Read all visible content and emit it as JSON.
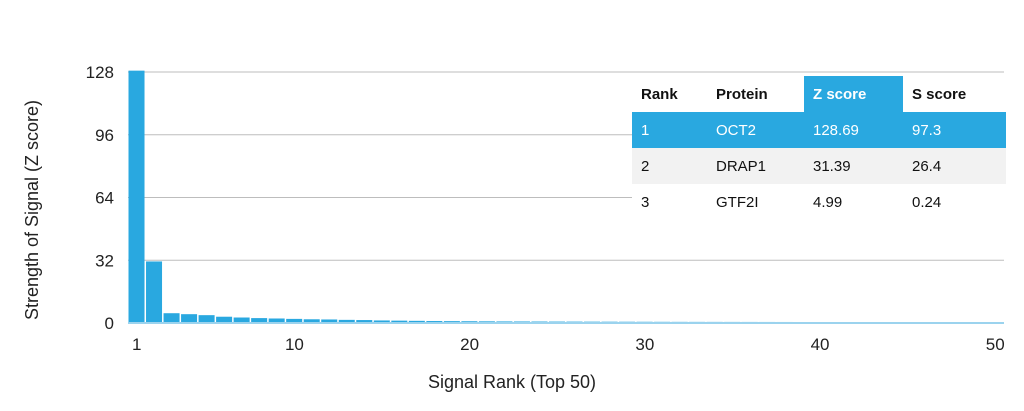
{
  "chart_data": {
    "type": "bar",
    "xlabel": "Signal Rank (Top 50)",
    "ylabel": "Strength of Signal (Z score)",
    "ylim": [
      0,
      128
    ],
    "yticks": [
      "0",
      "32",
      "64",
      "96",
      "128"
    ],
    "xticks": [
      "1",
      "10",
      "20",
      "30",
      "40",
      "50"
    ],
    "grid": true,
    "categories": [
      1,
      2,
      3,
      4,
      5,
      6,
      7,
      8,
      9,
      10,
      11,
      12,
      13,
      14,
      15,
      16,
      17,
      18,
      19,
      20,
      21,
      22,
      23,
      24,
      25,
      26,
      27,
      28,
      29,
      30,
      31,
      32,
      33,
      34,
      35,
      36,
      37,
      38,
      39,
      40,
      41,
      42,
      43,
      44,
      45,
      46,
      47,
      48,
      49,
      50
    ],
    "values": [
      128.69,
      31.39,
      4.99,
      4.5,
      4.0,
      3.2,
      2.8,
      2.5,
      2.3,
      2.1,
      1.9,
      1.8,
      1.6,
      1.5,
      1.3,
      1.2,
      1.1,
      1.0,
      0.95,
      0.9,
      0.85,
      0.8,
      0.78,
      0.75,
      0.72,
      0.7,
      0.68,
      0.66,
      0.64,
      0.62,
      0.6,
      0.58,
      0.57,
      0.56,
      0.55,
      0.54,
      0.53,
      0.52,
      0.51,
      0.5,
      0.49,
      0.48,
      0.47,
      0.46,
      0.45,
      0.44,
      0.43,
      0.42,
      0.41,
      0.4
    ],
    "bar_color": "#29a8e0"
  },
  "table": {
    "headers": [
      "Rank",
      "Protein",
      "Z score",
      "S score"
    ],
    "rows": [
      [
        "1",
        "OCT2",
        "128.69",
        "97.3"
      ],
      [
        "2",
        "DRAP1",
        "31.39",
        "26.4"
      ],
      [
        "3",
        "GTF2I",
        "4.99",
        "0.24"
      ]
    ],
    "highlight_color": "#29a8e0"
  }
}
